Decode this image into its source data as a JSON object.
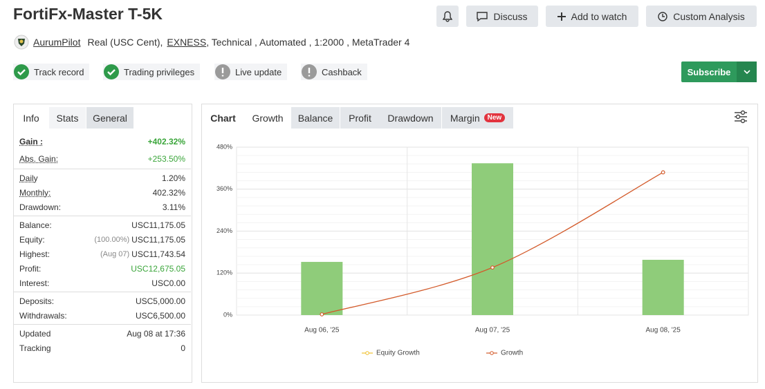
{
  "header": {
    "title": "FortiFx-Master T-5K",
    "buttons": [
      "Discuss",
      "Add to watch",
      "Custom Analysis"
    ],
    "author": "AurumPilot",
    "details_prefix": "Real (USC Cent),",
    "broker": "EXNESS",
    "details_suffix": ", Technical , Automated , 1:2000 , MetaTrader 4"
  },
  "badges": [
    {
      "label": "Track record",
      "ok": true
    },
    {
      "label": "Trading privileges",
      "ok": true
    },
    {
      "label": "Live update",
      "ok": false
    },
    {
      "label": "Cashback",
      "ok": false
    }
  ],
  "subscribe": "Subscribe",
  "stats_tabs": [
    "Info",
    "Stats",
    "General"
  ],
  "stats": [
    [
      {
        "label": "Gain :",
        "value": "+402.32%",
        "tone": "strong"
      },
      {
        "label": "Abs. Gain:",
        "value": "+253.50%",
        "tone": "green"
      }
    ],
    [
      {
        "label": "Daily",
        "value": "1.20%"
      },
      {
        "label": "Monthly:",
        "value": "402.32%"
      },
      {
        "label": "Drawdown:",
        "value": "3.11%"
      }
    ],
    [
      {
        "label": "Balance:",
        "value": "USC11,175.05"
      },
      {
        "label": "Equity:",
        "note": "(100.00%)",
        "value": "USC11,175.05"
      },
      {
        "label": "Highest:",
        "note": "(Aug 07)",
        "value": "USC11,743.54"
      },
      {
        "label": "Profit:",
        "value": "USC12,675.05",
        "tone": "green"
      },
      {
        "label": "Interest:",
        "value": "USC0.00"
      }
    ],
    [
      {
        "label": "Deposits:",
        "value": "USC5,000.00"
      },
      {
        "label": "Withdrawals:",
        "value": "USC6,500.00"
      }
    ],
    [
      {
        "label": "Updated",
        "value": "Aug 08 at 17:36"
      },
      {
        "label": "Tracking",
        "value": "0"
      }
    ]
  ],
  "chart_tabs": [
    "Chart",
    "Growth",
    "Balance",
    "Profit",
    "Drawdown",
    "Margin"
  ],
  "new_badge": "New",
  "chart_data": {
    "type": "bar",
    "categories": [
      "Aug 06, '25",
      "Aug 07, '25",
      "Aug 08, '25"
    ],
    "values": [
      152,
      434,
      158
    ],
    "color": "#8fcc7a",
    "series": [
      {
        "name": "Equity Growth",
        "color": "#f0c030",
        "values": [
          null,
          null,
          null
        ]
      },
      {
        "name": "Growth",
        "color": "#d35a2a",
        "values": [
          2,
          136,
          408
        ]
      }
    ],
    "ylim": [
      0,
      480
    ],
    "yticks": [
      {
        "value": 0,
        "label": "0%"
      },
      {
        "value": 120,
        "label": "120%"
      },
      {
        "value": 240,
        "label": "240%"
      },
      {
        "value": 360,
        "label": "360%"
      },
      {
        "value": 480,
        "label": "480%"
      }
    ],
    "grid": true
  }
}
